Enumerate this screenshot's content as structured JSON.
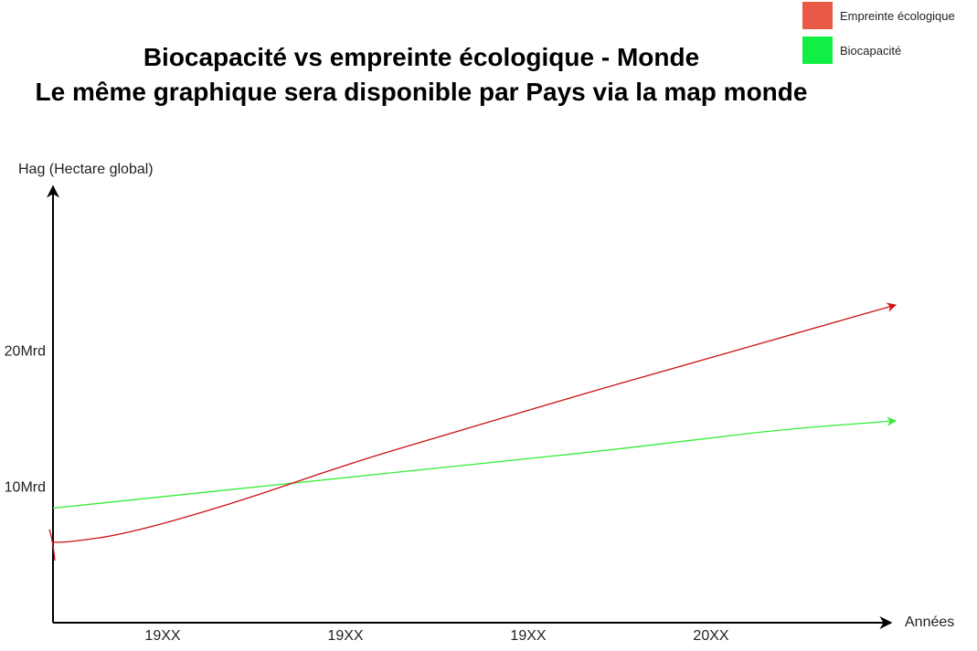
{
  "chart_data": {
    "type": "line",
    "title": "Biocapacité vs empreinte écologique - Monde",
    "subtitle": "Le même graphique sera disponible par Pays via la map monde",
    "ylabel": "Hag (Hectare global)",
    "xlabel": "Années",
    "x_ticks": [
      "19XX",
      "19XX",
      "19XX",
      "20XX"
    ],
    "y_ticks": [
      {
        "value": 10,
        "label": "10Mrd"
      },
      {
        "value": 20,
        "label": "20Mrd"
      }
    ],
    "xlim": [
      0,
      4.6
    ],
    "ylim": [
      0,
      32
    ],
    "legend_position": "top-right",
    "series": [
      {
        "name": "Empreinte écologique",
        "color": "#cc1111",
        "legend_color": "#e85a45",
        "x": [
          0,
          0.08,
          0.4,
          1,
          1.6,
          2.2,
          2.8,
          3.4,
          4,
          4.6
        ],
        "y": [
          5.9,
          5.9,
          6.5,
          8.8,
          11.6,
          14,
          16.4,
          18.7,
          21,
          23.3
        ]
      },
      {
        "name": "Biocapacité",
        "color": "#33ee33",
        "legend_color": "#11ee44",
        "x": [
          0,
          0.5,
          1,
          1.5,
          2,
          2.5,
          3,
          3.5,
          4,
          4.6
        ],
        "y": [
          8.4,
          9.1,
          9.8,
          10.5,
          11.2,
          11.9,
          12.6,
          13.4,
          14.2,
          14.8
        ]
      }
    ]
  }
}
